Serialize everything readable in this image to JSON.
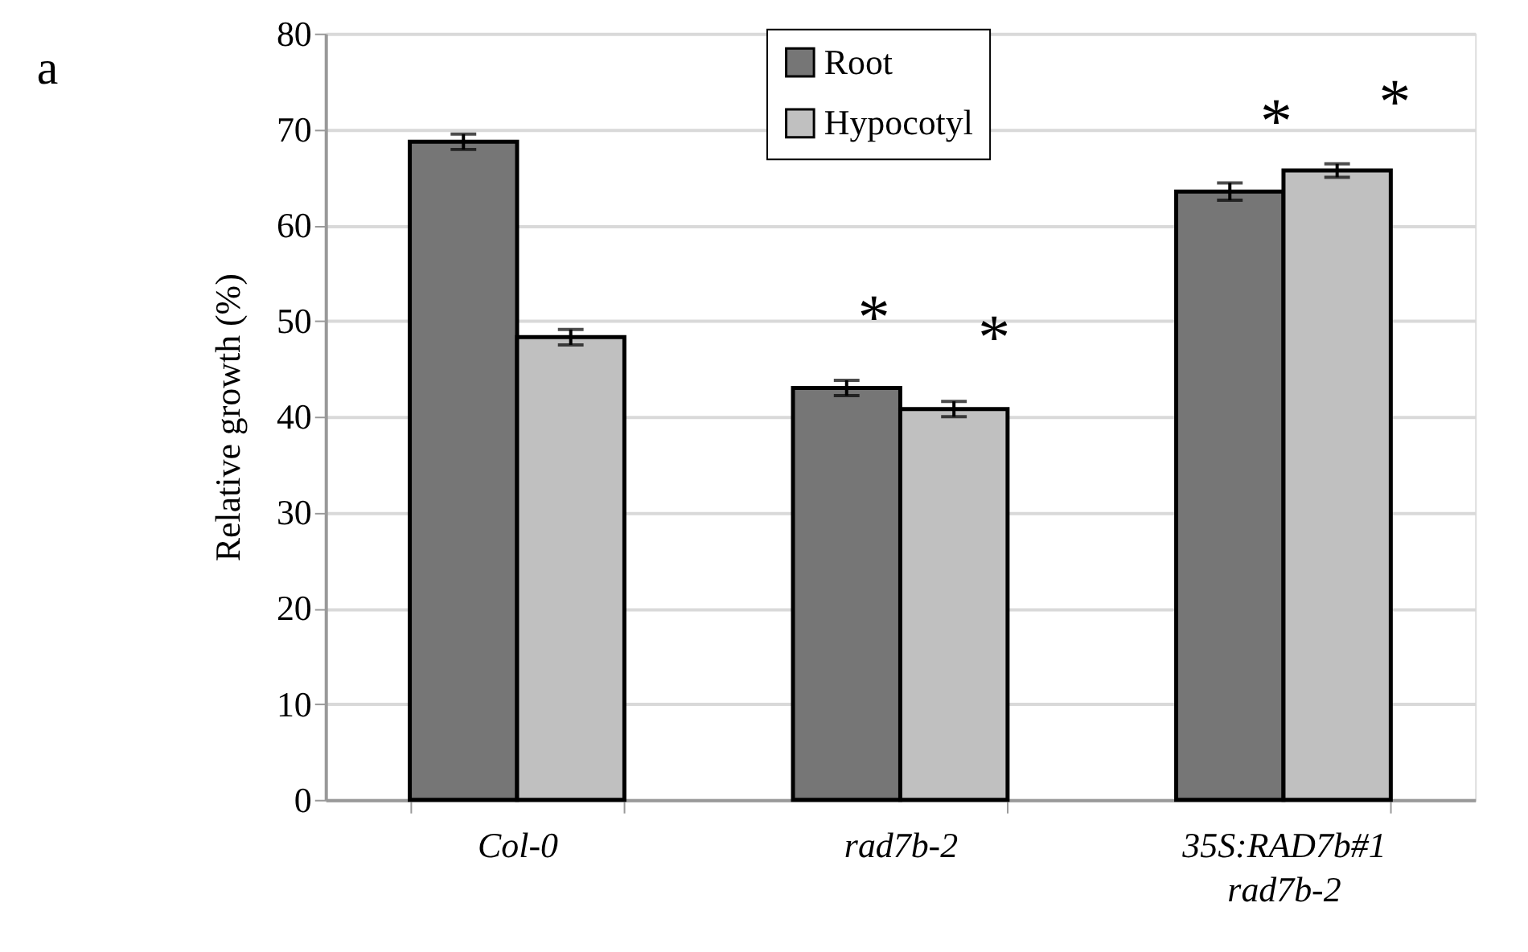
{
  "chart_data": {
    "type": "bar",
    "ylabel": "Relative growth (%)",
    "categories": [
      "Col-0",
      "rad7b-2",
      "35S:RAD7b#1\nrad7b-2"
    ],
    "series": [
      {
        "name": "Root",
        "color": "#767676",
        "values": [
          68.7,
          43.0,
          63.5
        ],
        "errors": [
          0.8,
          0.8,
          0.9
        ]
      },
      {
        "name": "Hypocotyl",
        "color": "#c0c0c0",
        "values": [
          48.3,
          40.8,
          65.7
        ],
        "errors": [
          0.8,
          0.8,
          0.7
        ]
      }
    ],
    "ylim": [
      0,
      80
    ],
    "yticks": [
      0,
      10,
      20,
      30,
      40,
      50,
      60,
      70,
      80
    ],
    "grid": "y",
    "legend": "top",
    "annotations": [
      "a",
      "*",
      "*",
      "*",
      "*"
    ]
  }
}
